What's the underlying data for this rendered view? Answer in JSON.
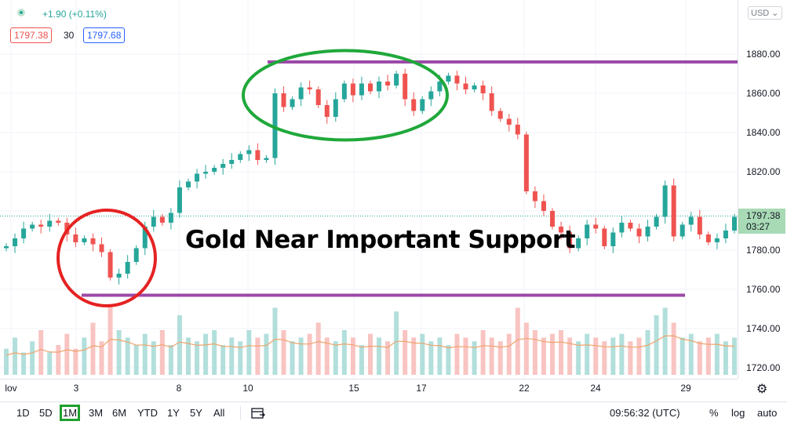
{
  "legend": {
    "change": "+1.90 (+0.11%)",
    "bid": "1797.38",
    "spread": "30",
    "ask": "1797.68"
  },
  "annotation": "Gold Near Important Support",
  "price_axis": {
    "currency": "USD",
    "last_price": "1797.38",
    "countdown": "03:27"
  },
  "time_axis": {
    "labels": [
      "lov",
      "3",
      "8",
      "10",
      "15",
      "17",
      "22",
      "24",
      "29"
    ]
  },
  "toolbar": {
    "timeframes": [
      "1D",
      "5D",
      "1M",
      "3M",
      "6M",
      "YTD",
      "1Y",
      "5Y",
      "All"
    ],
    "active_timeframe": "1M",
    "clock": "09:56:32 (UTC)",
    "percent": "%",
    "log": "log",
    "auto": "auto"
  },
  "colors": {
    "up": "#26a69a",
    "down": "#ef5350",
    "resistance_line": "#9c4aa8",
    "consolidation_ellipse": "#1fa83a",
    "support_circle": "#e52222",
    "volume_ma": "#f0a36a"
  },
  "chart_data": {
    "type": "line",
    "title": "",
    "xlabel": "",
    "ylabel": "",
    "ylim": [
      1713,
      1888
    ],
    "y_ticks": [
      1720,
      1740,
      1760,
      1780,
      1800,
      1820,
      1840,
      1860,
      1880
    ],
    "x_ticks": [
      "lov",
      "3",
      "8",
      "10",
      "15",
      "17",
      "22",
      "24",
      "29"
    ],
    "series": [
      {
        "values": [
          1782,
          1786,
          1791,
          1793,
          1792,
          1795,
          1794,
          1788,
          1784,
          1786,
          1783,
          1779,
          1766,
          1768,
          1774,
          1781,
          1792,
          1797,
          1794,
          1799,
          1812,
          1815,
          1819,
          1820,
          1822,
          1824,
          1826,
          1829,
          1831,
          1826,
          1827,
          1860,
          1853,
          1857,
          1863,
          1862,
          1854,
          1848,
          1857,
          1865,
          1859,
          1865,
          1861,
          1866,
          1864,
          1870,
          1857,
          1851,
          1857,
          1861,
          1866,
          1869,
          1865,
          1862,
          1864,
          1860,
          1851,
          1847,
          1844,
          1839,
          1810,
          1805,
          1800,
          1792,
          1789,
          1781,
          1786,
          1793,
          1791,
          1782,
          1789,
          1794,
          1791,
          1787,
          1792,
          1797,
          1813,
          1787,
          1793,
          1797,
          1788,
          1784,
          1786,
          1790,
          1797
        ]
      }
    ],
    "volume": [
      0.35,
      0.5,
      0.3,
      0.45,
      0.6,
      0.3,
      0.4,
      0.55,
      0.35,
      0.5,
      0.7,
      0.45,
      0.95,
      0.6,
      0.5,
      0.4,
      0.55,
      0.45,
      0.6,
      0.4,
      0.8,
      0.5,
      0.45,
      0.55,
      0.6,
      0.4,
      0.5,
      0.45,
      0.6,
      0.5,
      0.55,
      0.9,
      0.6,
      0.45,
      0.5,
      0.55,
      0.7,
      0.5,
      0.45,
      0.6,
      0.5,
      0.4,
      0.55,
      0.5,
      0.45,
      0.85,
      0.6,
      0.5,
      0.55,
      0.45,
      0.5,
      0.4,
      0.55,
      0.5,
      0.45,
      0.6,
      0.5,
      0.45,
      0.55,
      0.9,
      0.7,
      0.6,
      0.5,
      0.55,
      0.6,
      0.5,
      0.45,
      0.55,
      0.5,
      0.45,
      0.5,
      0.55,
      0.45,
      0.5,
      0.6,
      0.8,
      0.9,
      0.7,
      0.5,
      0.55,
      0.45,
      0.5,
      0.55,
      0.45,
      0.5
    ],
    "drawings": [
      {
        "kind": "horizontal-line",
        "label": "resistance",
        "price": 1876,
        "x_start": "10",
        "x_end": "right-edge"
      },
      {
        "kind": "horizontal-line",
        "label": "support",
        "price": 1757,
        "x_start": "3",
        "x_end": "29"
      },
      {
        "kind": "ellipse",
        "label": "consolidation",
        "price_center": 1859
      },
      {
        "kind": "circle",
        "label": "support-test",
        "price_center": 1776
      }
    ]
  }
}
